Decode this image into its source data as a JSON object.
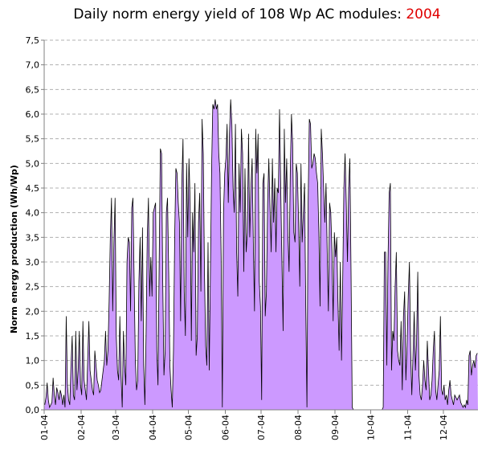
{
  "chart_data": {
    "type": "area",
    "title": "Daily norm energy yield of 108 Wp AC modules:",
    "title_year": "2004",
    "ylabel": "Norm energy production (Wh/Wp)",
    "xlabel": "",
    "ylim": [
      0,
      7.5
    ],
    "yticks": [
      "0,0",
      "0,5",
      "1,0",
      "1,5",
      "2,0",
      "2,5",
      "3,0",
      "3,5",
      "4,0",
      "4,5",
      "5,0",
      "5,5",
      "6,0",
      "6,5",
      "7,0",
      "7,5"
    ],
    "xticks": [
      "01-04",
      "02-04",
      "03-04",
      "04-04",
      "05-04",
      "06-04",
      "07-04",
      "08-04",
      "09-04",
      "10-04",
      "11-04",
      "12-04"
    ],
    "grid": true,
    "colors": {
      "fill": "#cc99ff",
      "line": "#000000",
      "grid": "#b0b0b0",
      "axis": "#808080",
      "title_year": "#e00000"
    },
    "series": [
      {
        "values": [
          0.1,
          0.25,
          0.55,
          0.2,
          0.05,
          0.1,
          0.15,
          0.65,
          0.3,
          0.1,
          0.45,
          0.35,
          0.2,
          0.4,
          0.3,
          0.1,
          0.3,
          0.05,
          1.9,
          0.5,
          0.2,
          0.1,
          0.9,
          1.5,
          0.3,
          0.2,
          1.6,
          0.4,
          0.8,
          1.6,
          0.5,
          0.3,
          1.8,
          0.6,
          0.4,
          0.2,
          1.0,
          1.8,
          0.8,
          0.6,
          0.4,
          0.3,
          1.2,
          0.9,
          0.6,
          0.5,
          0.35,
          0.4,
          0.6,
          0.8,
          1.0,
          1.6,
          0.9,
          1.2,
          2.2,
          3.5,
          4.3,
          2.0,
          3.4,
          4.3,
          1.5,
          0.8,
          0.6,
          1.9,
          0.7,
          0.05,
          1.6,
          0.9,
          0.5,
          3.0,
          3.5,
          3.4,
          2.0,
          4.1,
          4.3,
          2.6,
          1.0,
          0.4,
          0.6,
          2.6,
          3.5,
          1.8,
          3.7,
          0.9,
          0.1,
          1.5,
          3.5,
          4.3,
          2.3,
          3.1,
          2.3,
          4.0,
          4.1,
          4.2,
          1.2,
          0.5,
          3.0,
          5.3,
          5.2,
          2.6,
          0.7,
          1.2,
          4.0,
          4.3,
          2.8,
          0.9,
          0.4,
          0.05,
          1.2,
          3.5,
          4.9,
          4.8,
          4.2,
          3.8,
          1.8,
          4.6,
          5.5,
          2.4,
          1.5,
          5.0,
          3.5,
          5.1,
          4.2,
          1.4,
          4.0,
          3.2,
          4.6,
          1.1,
          1.5,
          3.8,
          4.4,
          2.4,
          5.9,
          5.2,
          2.8,
          1.3,
          0.9,
          3.4,
          0.8,
          2.8,
          4.9,
          6.2,
          6.1,
          6.3,
          6.1,
          6.2,
          5.2,
          4.8,
          3.1,
          0.05,
          4.0,
          4.8,
          5.1,
          5.8,
          4.2,
          5.6,
          6.3,
          5.8,
          4.5,
          4.0,
          5.8,
          3.2,
          2.3,
          5.0,
          4.0,
          5.7,
          5.2,
          2.8,
          4.9,
          3.2,
          3.6,
          5.6,
          3.5,
          4.5,
          5.1,
          3.4,
          2.0,
          5.7,
          4.8,
          5.6,
          2.6,
          2.1,
          0.2,
          4.6,
          4.8,
          1.9,
          2.4,
          4.2,
          5.1,
          4.1,
          3.2,
          5.1,
          3.8,
          4.7,
          3.2,
          4.5,
          4.4,
          6.1,
          4.5,
          3.0,
          1.6,
          5.7,
          4.2,
          5.1,
          3.6,
          2.8,
          4.8,
          6.0,
          5.4,
          3.6,
          3.4,
          5.0,
          4.8,
          3.8,
          2.5,
          5.0,
          3.4,
          4.0,
          4.6,
          2.1,
          0.05,
          4.2,
          5.9,
          5.8,
          4.9,
          5.0,
          5.2,
          5.1,
          4.8,
          4.6,
          3.6,
          2.1,
          5.7,
          5.2,
          4.5,
          3.8,
          4.6,
          3.2,
          2.0,
          4.2,
          4.0,
          3.2,
          1.8,
          3.6,
          3.1,
          3.5,
          2.2,
          1.2,
          3.0,
          1.0,
          2.6,
          4.5,
          5.2,
          4.2,
          3.0,
          4.5,
          5.1,
          2.8,
          0.05,
          0,
          0,
          0,
          0,
          0,
          0,
          0,
          0,
          0,
          0,
          0,
          0,
          0,
          0,
          0,
          0,
          0,
          0,
          0,
          0,
          0,
          0,
          0,
          0,
          0,
          0.05,
          3.2,
          3.2,
          0.9,
          3.0,
          4.4,
          4.6,
          0.8,
          1.6,
          1.4,
          2.5,
          3.2,
          1.2,
          1.0,
          0.9,
          1.8,
          0.4,
          1.9,
          2.4,
          0.6,
          1.3,
          2.3,
          3.0,
          1.2,
          0.3,
          1.1,
          2.0,
          0.8,
          1.4,
          2.8,
          0.7,
          0.3,
          0.2,
          0.5,
          1.0,
          0.6,
          0.4,
          1.4,
          0.8,
          0.2,
          0.3,
          0.6,
          1.2,
          1.6,
          0.4,
          0.2,
          0.5,
          0.8,
          1.9,
          0.4,
          0.3,
          0.5,
          0.2,
          0.3,
          0.1,
          0.4,
          0.6,
          0.3,
          0.2,
          0.1,
          0.3,
          0.25,
          0.2,
          0.25,
          0.3,
          0.15,
          0.1,
          0.05,
          0.1,
          0.05,
          0.2,
          0.1,
          1.1,
          1.2,
          0.7,
          0.9,
          1.0,
          0.85,
          1.1,
          1.15
        ]
      }
    ]
  }
}
